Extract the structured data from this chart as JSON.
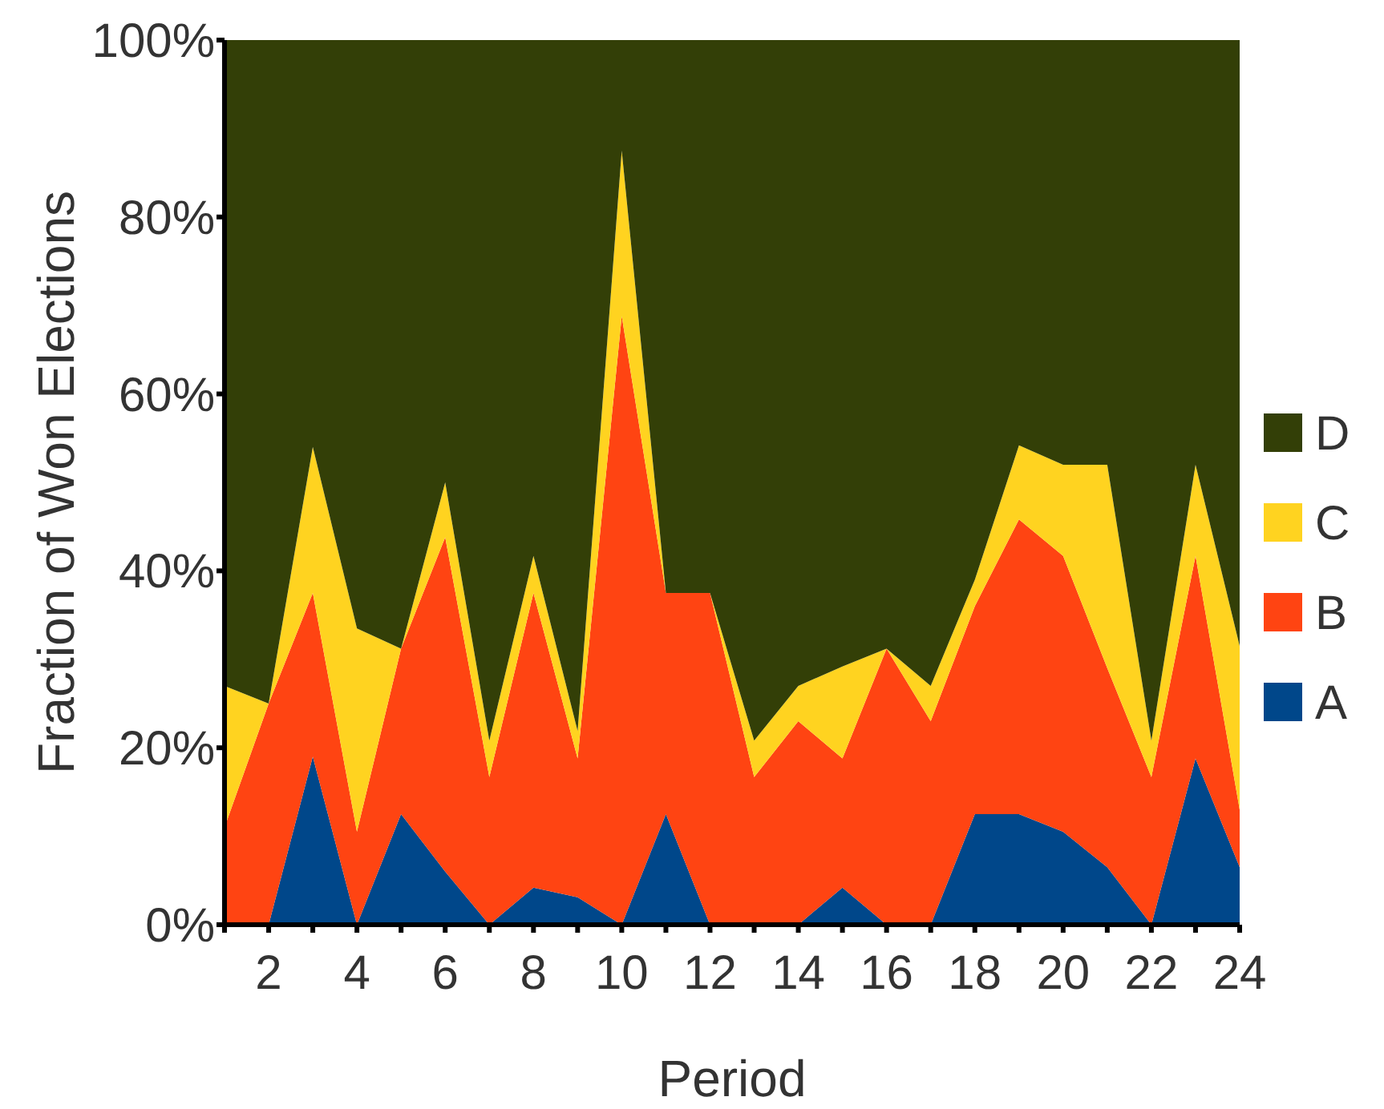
{
  "chart_data": {
    "type": "area",
    "stacked": true,
    "xlabel": "Period",
    "ylabel": "Fraction of Won Elections",
    "x": [
      1,
      2,
      3,
      4,
      5,
      6,
      7,
      8,
      9,
      10,
      11,
      12,
      13,
      14,
      15,
      16,
      17,
      18,
      19,
      20,
      21,
      22,
      23,
      24
    ],
    "series": [
      {
        "name": "A",
        "color": "#00478a",
        "values": [
          0,
          0,
          19,
          0,
          12.5,
          6,
          0,
          4.2,
          3.1,
          0,
          12.5,
          0,
          0,
          0,
          4.2,
          0,
          0,
          12.5,
          12.5,
          10.5,
          6.5,
          0,
          18.8,
          6.5
        ]
      },
      {
        "name": "B",
        "color": "#ff4412",
        "values": [
          11,
          25,
          18.5,
          10.5,
          18.7,
          37.8,
          16.7,
          33.3,
          15.7,
          68.8,
          25,
          37.5,
          16.7,
          23,
          14.6,
          31.2,
          23,
          23.5,
          33.3,
          31.2,
          22.5,
          16.7,
          22.9,
          6.5
        ]
      },
      {
        "name": "C",
        "color": "#ffd320",
        "values": [
          16,
          0,
          16.5,
          23,
          0,
          6.2,
          4.1,
          4.2,
          3.1,
          18.7,
          0,
          0,
          4.1,
          4,
          10.4,
          0,
          4,
          3,
          8.4,
          10.3,
          23,
          4.1,
          10.3,
          18.5
        ]
      },
      {
        "name": "D",
        "color": "#333f07",
        "values": [
          73,
          75,
          46,
          66.5,
          68.8,
          50,
          79.2,
          58.3,
          78.1,
          12.5,
          62.5,
          62.5,
          79.2,
          73,
          70.8,
          68.8,
          73,
          61,
          45.8,
          48,
          48,
          79.2,
          48,
          68.5
        ]
      }
    ],
    "xlim": [
      1,
      24
    ],
    "xticks": [
      {
        "value": 1,
        "label": null
      },
      2,
      {
        "value": 3,
        "label": null
      },
      4,
      {
        "value": 5,
        "label": null
      },
      6,
      {
        "value": 7,
        "label": null
      },
      8,
      {
        "value": 9,
        "label": null
      },
      10,
      {
        "value": 11,
        "label": null
      },
      12,
      {
        "value": 13,
        "label": null
      },
      14,
      {
        "value": 15,
        "label": null
      },
      16,
      {
        "value": 17,
        "label": null
      },
      18,
      {
        "value": 19,
        "label": null
      },
      20,
      {
        "value": 21,
        "label": null
      },
      22,
      {
        "value": 23,
        "label": null
      },
      24
    ],
    "ylim": [
      0,
      100
    ],
    "yticks": [
      {
        "value": 0,
        "label": "0%"
      },
      {
        "value": 20,
        "label": "20%"
      },
      {
        "value": 40,
        "label": "40%"
      },
      {
        "value": 60,
        "label": "60%"
      },
      {
        "value": 80,
        "label": "80%"
      },
      {
        "value": 100,
        "label": "100%"
      }
    ],
    "grid": false,
    "legend": "right"
  }
}
